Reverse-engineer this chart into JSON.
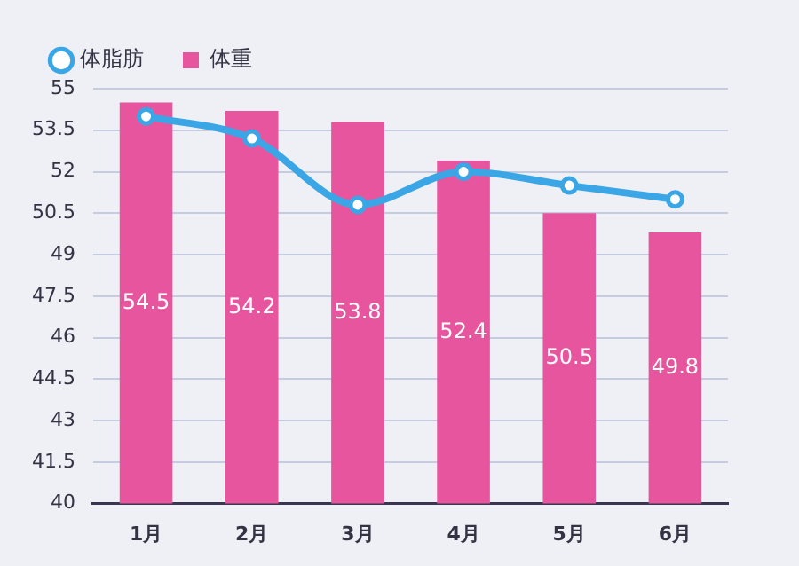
{
  "chart_data": {
    "type": "bar",
    "categories": [
      "1月",
      "2月",
      "3月",
      "4月",
      "5月",
      "6月"
    ],
    "series": [
      {
        "name": "体脂肪",
        "type": "line",
        "color": "#3aa6e6",
        "values": [
          54.0,
          53.2,
          50.8,
          52.0,
          51.5,
          51.0
        ]
      },
      {
        "name": "体重",
        "color": "#e8559f",
        "values": [
          54.5,
          54.2,
          53.8,
          52.4,
          50.5,
          49.8
        ],
        "value_labels": [
          "54.5",
          "54.2",
          "53.8",
          "52.4",
          "50.5",
          "49.8"
        ]
      }
    ],
    "ylim": [
      40,
      55
    ],
    "yticks": [
      40,
      41.5,
      43,
      44.5,
      46,
      47.5,
      49,
      50.5,
      52,
      53.5,
      55
    ],
    "grid": "y",
    "legend": "top left",
    "marker": "circle"
  }
}
